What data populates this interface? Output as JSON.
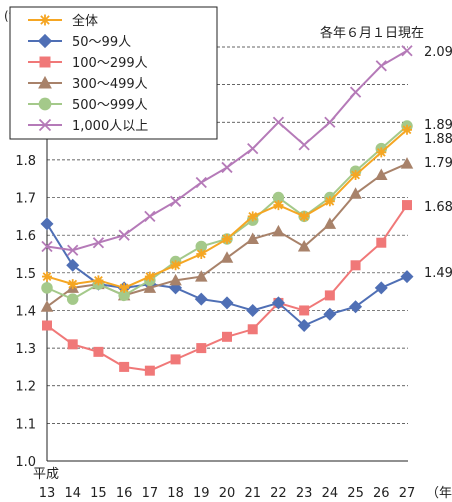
{
  "chart_data": {
    "type": "line",
    "title": "",
    "note": "各年６月１日現在",
    "y_unit": "(%)",
    "x_unit": "（年）",
    "x_era": "平成",
    "ylim": [
      1.0,
      2.1
    ],
    "yticks": [
      "1.0",
      "1.1",
      "1.2",
      "1.3",
      "1.4",
      "1.5",
      "1.6",
      "1.7",
      "1.8",
      "1.9",
      "2.0",
      "2.1"
    ],
    "x": [
      "13",
      "14",
      "15",
      "16",
      "17",
      "18",
      "19",
      "20",
      "21",
      "22",
      "23",
      "24",
      "25",
      "26",
      "27"
    ],
    "grid": "horizontal dashed",
    "legend_position": "top-left",
    "series": [
      {
        "name": "全体",
        "marker": "asterisk",
        "color": "#f5a623",
        "values": [
          1.49,
          1.47,
          1.48,
          1.46,
          1.49,
          1.52,
          1.55,
          1.59,
          1.65,
          1.68,
          1.65,
          1.69,
          1.76,
          1.82,
          1.88
        ],
        "end_label": "1.88"
      },
      {
        "name": "50～99人",
        "marker": "diamond",
        "color": "#4f6fb5",
        "values": [
          1.63,
          1.52,
          1.47,
          1.46,
          1.47,
          1.46,
          1.43,
          1.42,
          1.4,
          1.42,
          1.36,
          1.39,
          1.41,
          1.46,
          1.49
        ],
        "end_label": "1.49"
      },
      {
        "name": "100～299人",
        "marker": "square",
        "color": "#f07878",
        "values": [
          1.36,
          1.31,
          1.29,
          1.25,
          1.24,
          1.27,
          1.3,
          1.33,
          1.35,
          1.42,
          1.4,
          1.44,
          1.52,
          1.58,
          1.68
        ],
        "end_label": "1.68"
      },
      {
        "name": "300～499人",
        "marker": "triangle",
        "color": "#a8826a",
        "values": [
          1.41,
          1.46,
          1.47,
          1.44,
          1.46,
          1.48,
          1.49,
          1.54,
          1.59,
          1.61,
          1.57,
          1.63,
          1.71,
          1.76,
          1.79
        ],
        "end_label": "1.79"
      },
      {
        "name": "500～999人",
        "marker": "circle",
        "color": "#a4c98a",
        "values": [
          1.46,
          1.43,
          1.47,
          1.44,
          1.48,
          1.53,
          1.57,
          1.59,
          1.64,
          1.7,
          1.65,
          1.7,
          1.77,
          1.83,
          1.89
        ],
        "end_label": "1.89"
      },
      {
        "name": "1,000人以上",
        "marker": "x",
        "color": "#b57ab8",
        "values": [
          1.57,
          1.56,
          1.58,
          1.6,
          1.65,
          1.69,
          1.74,
          1.78,
          1.83,
          1.9,
          1.84,
          1.9,
          1.98,
          2.05,
          2.09
        ],
        "end_label": "2.09"
      }
    ]
  }
}
